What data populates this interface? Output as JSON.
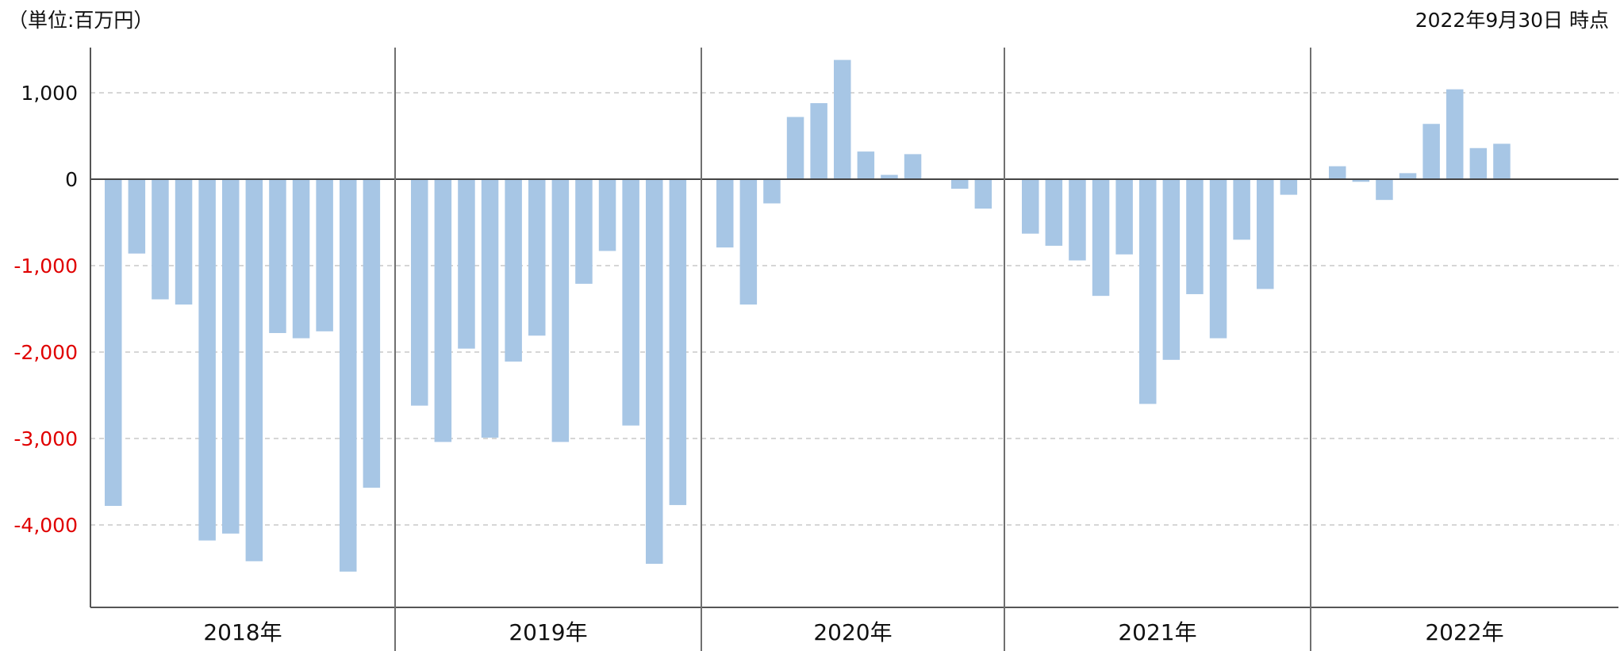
{
  "chart_data": {
    "type": "bar",
    "unit_label": "（単位:百万円）",
    "date_label": "2022年9月30日 時点",
    "bar_color": "#a7c6e5",
    "negative_tick_color": "#e00000",
    "positive_tick_color": "#111111",
    "ylim": [
      -5000,
      1500
    ],
    "y_ticks": [
      {
        "value": 1000,
        "label": "1,000"
      },
      {
        "value": 0,
        "label": "0"
      },
      {
        "value": -1000,
        "label": "-1,000"
      },
      {
        "value": -2000,
        "label": "-2,000"
      },
      {
        "value": -3000,
        "label": "-3,000"
      },
      {
        "value": -4000,
        "label": "-4,000"
      }
    ],
    "groups": [
      {
        "label": "2018年",
        "values": [
          -3780,
          -860,
          -1390,
          -1450,
          -4180,
          -4100,
          -4420,
          -1780,
          -1840,
          -1760,
          -4540,
          -3570
        ]
      },
      {
        "label": "2019年",
        "values": [
          -2620,
          -3040,
          -1960,
          -2990,
          -2110,
          -1810,
          -3040,
          -1210,
          -830,
          -2850,
          -4450,
          -3770
        ]
      },
      {
        "label": "2020年",
        "values": [
          -790,
          -1450,
          -280,
          720,
          880,
          1380,
          320,
          50,
          290,
          0,
          -110,
          -340
        ]
      },
      {
        "label": "2021年",
        "values": [
          -630,
          -770,
          -940,
          -1350,
          -870,
          -2600,
          -2090,
          -1330,
          -1840,
          -700,
          -1270,
          -180
        ]
      },
      {
        "label": "2022年",
        "values": [
          150,
          -30,
          -240,
          70,
          640,
          1040,
          360,
          410
        ]
      }
    ]
  }
}
